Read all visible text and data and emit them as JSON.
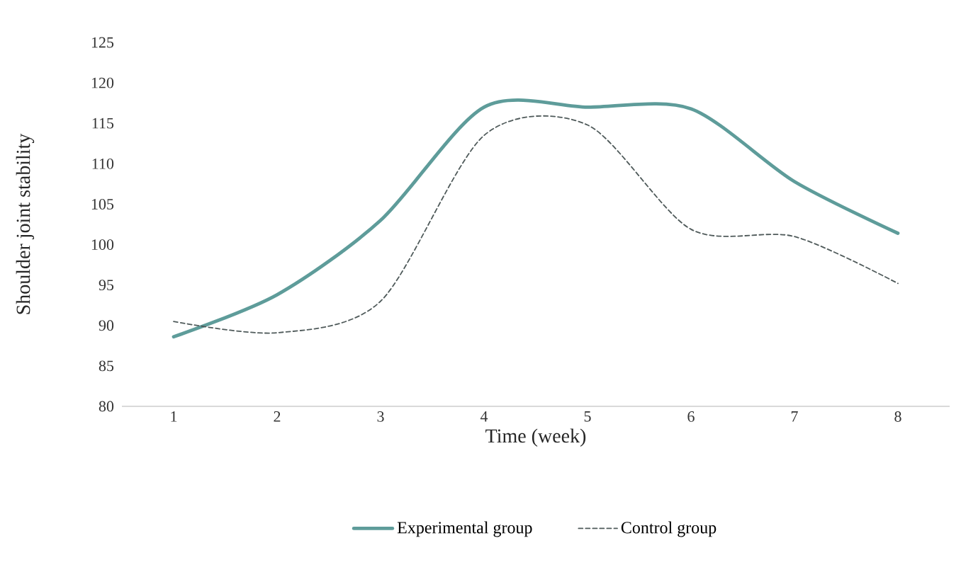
{
  "chart_data": {
    "type": "line",
    "xlabel": "Time (week)",
    "ylabel": "Shoulder joint stability",
    "categories": [
      "1",
      "2",
      "3",
      "4",
      "5",
      "6",
      "7",
      "8"
    ],
    "series": [
      {
        "name": "Experimental group",
        "color": "#5e9c9a",
        "line_style": "solid",
        "values": [
          88.6,
          93.8,
          103,
          117,
          117,
          116.8,
          107.8,
          101.4
        ]
      },
      {
        "name": "Control group",
        "color": "#4f5a5a",
        "line_style": "dashed",
        "values": [
          90.5,
          89.1,
          93,
          113.5,
          114.8,
          101.9,
          101,
          95.2
        ]
      }
    ],
    "ylim": [
      80,
      125
    ],
    "yticks": [
      80,
      85,
      90,
      95,
      100,
      105,
      110,
      115,
      120,
      125
    ],
    "grid": false,
    "legend": "bottom",
    "marker": "none"
  }
}
